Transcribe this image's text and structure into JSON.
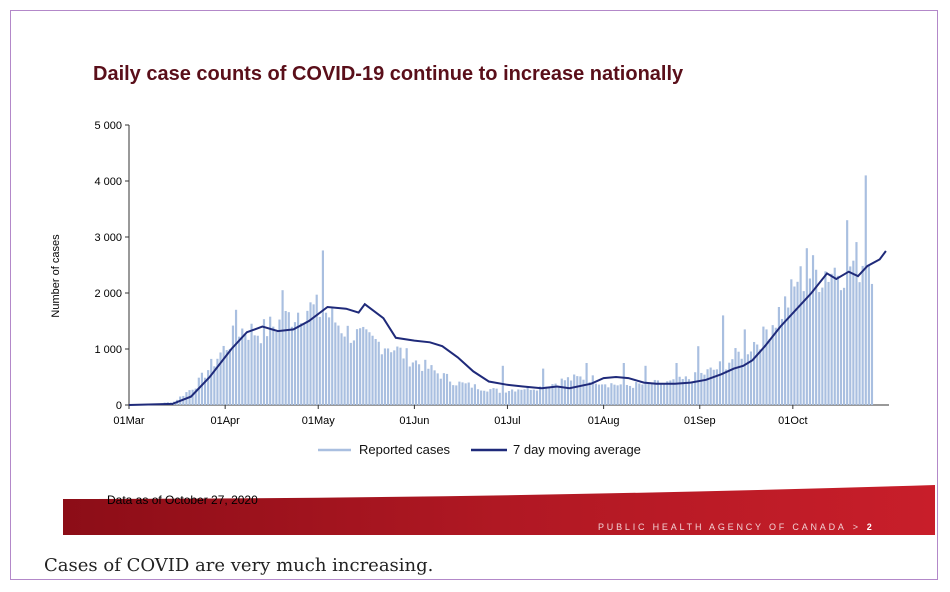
{
  "slide": {
    "title": "Daily case counts of COVID-19 continue to increase nationally",
    "data_as_of": "Data as of October 27, 2020",
    "agency": "PUBLIC HEALTH AGENCY OF CANADA",
    "separator": ">",
    "page_number": "2"
  },
  "caption": "Cases of COVID are very much increasing.",
  "colors": {
    "title": "#5a0f1a",
    "bars": "#a9bfe0",
    "average_line": "#1f2a7a",
    "banner": "#a3121d"
  },
  "chart_data": {
    "type": "bar",
    "ylabel": "Number of cases",
    "xlabel": "",
    "ylim": [
      0,
      5000
    ],
    "yticks": [
      0,
      1000,
      2000,
      3000,
      4000,
      5000
    ],
    "ytick_labels": [
      "0",
      "1 000",
      "2 000",
      "3 000",
      "4 000",
      "5 000"
    ],
    "xticks": [
      "01Mar",
      "01Apr",
      "01May",
      "01Jun",
      "01Jul",
      "01Aug",
      "01Sep",
      "01Oct"
    ],
    "x_start": "2020-03-01",
    "legend_position": "bottom",
    "series": [
      {
        "name": "Reported cases",
        "kind": "bar",
        "weekly_points": [
          [
            "2020-03-01",
            0
          ],
          [
            "2020-03-08",
            10
          ],
          [
            "2020-03-15",
            60
          ],
          [
            "2020-03-22",
            350
          ],
          [
            "2020-03-29",
            850
          ],
          [
            "2020-04-05",
            1350
          ],
          [
            "2020-04-12",
            1300
          ],
          [
            "2020-04-19",
            1500
          ],
          [
            "2020-04-26",
            1750
          ],
          [
            "2020-05-03",
            1650
          ],
          [
            "2020-05-10",
            1300
          ],
          [
            "2020-05-17",
            1150
          ],
          [
            "2020-05-24",
            1050
          ],
          [
            "2020-05-31",
            800
          ],
          [
            "2020-06-07",
            600
          ],
          [
            "2020-06-14",
            400
          ],
          [
            "2020-06-21",
            320
          ],
          [
            "2020-06-28",
            250
          ],
          [
            "2020-07-05",
            300
          ],
          [
            "2020-07-12",
            320
          ],
          [
            "2020-07-19",
            450
          ],
          [
            "2020-07-26",
            500
          ],
          [
            "2020-08-02",
            380
          ],
          [
            "2020-08-09",
            350
          ],
          [
            "2020-08-16",
            380
          ],
          [
            "2020-08-23",
            400
          ],
          [
            "2020-08-30",
            500
          ],
          [
            "2020-09-06",
            650
          ],
          [
            "2020-09-13",
            900
          ],
          [
            "2020-09-20",
            1200
          ],
          [
            "2020-09-27",
            1700
          ],
          [
            "2020-10-04",
            2300
          ],
          [
            "2020-10-11",
            2400
          ],
          [
            "2020-10-18",
            2500
          ],
          [
            "2020-10-25",
            2600
          ]
        ],
        "labeled_peaks": [
          [
            "2020-04-04",
            1700
          ],
          [
            "2020-04-19",
            2050
          ],
          [
            "2020-05-02",
            2760
          ],
          [
            "2020-06-29",
            700
          ],
          [
            "2020-07-12",
            650
          ],
          [
            "2020-07-26",
            750
          ],
          [
            "2020-08-07",
            750
          ],
          [
            "2020-08-14",
            700
          ],
          [
            "2020-08-24",
            750
          ],
          [
            "2020-08-31",
            1050
          ],
          [
            "2020-09-08",
            1600
          ],
          [
            "2020-09-15",
            1350
          ],
          [
            "2020-09-21",
            1400
          ],
          [
            "2020-09-26",
            1750
          ],
          [
            "2020-10-02",
            2200
          ],
          [
            "2020-10-05",
            2800
          ],
          [
            "2020-10-18",
            3300
          ],
          [
            "2020-10-24",
            4100
          ]
        ]
      },
      {
        "name": "7 day moving average",
        "kind": "line",
        "points": [
          [
            "2020-03-01",
            0
          ],
          [
            "2020-03-15",
            20
          ],
          [
            "2020-03-21",
            150
          ],
          [
            "2020-03-27",
            500
          ],
          [
            "2020-04-03",
            1000
          ],
          [
            "2020-04-08",
            1300
          ],
          [
            "2020-04-13",
            1400
          ],
          [
            "2020-04-18",
            1320
          ],
          [
            "2020-04-23",
            1350
          ],
          [
            "2020-04-28",
            1500
          ],
          [
            "2020-05-04",
            1750
          ],
          [
            "2020-05-10",
            1720
          ],
          [
            "2020-05-14",
            1650
          ],
          [
            "2020-05-16",
            1800
          ],
          [
            "2020-05-22",
            1550
          ],
          [
            "2020-05-26",
            1200
          ],
          [
            "2020-06-01",
            1150
          ],
          [
            "2020-06-06",
            1120
          ],
          [
            "2020-06-10",
            1050
          ],
          [
            "2020-06-15",
            850
          ],
          [
            "2020-06-20",
            600
          ],
          [
            "2020-06-25",
            420
          ],
          [
            "2020-07-01",
            360
          ],
          [
            "2020-07-06",
            330
          ],
          [
            "2020-07-12",
            300
          ],
          [
            "2020-07-17",
            330
          ],
          [
            "2020-07-21",
            300
          ],
          [
            "2020-07-28",
            380
          ],
          [
            "2020-08-01",
            480
          ],
          [
            "2020-08-05",
            500
          ],
          [
            "2020-08-09",
            480
          ],
          [
            "2020-08-14",
            400
          ],
          [
            "2020-08-18",
            380
          ],
          [
            "2020-08-24",
            380
          ],
          [
            "2020-08-29",
            400
          ],
          [
            "2020-09-03",
            450
          ],
          [
            "2020-09-08",
            550
          ],
          [
            "2020-09-12",
            650
          ],
          [
            "2020-09-15",
            700
          ],
          [
            "2020-09-18",
            800
          ],
          [
            "2020-09-22",
            1050
          ],
          [
            "2020-09-27",
            1400
          ],
          [
            "2020-10-02",
            1700
          ],
          [
            "2020-10-07",
            2000
          ],
          [
            "2020-10-12",
            2350
          ],
          [
            "2020-10-15",
            2250
          ],
          [
            "2020-10-19",
            2380
          ],
          [
            "2020-10-22",
            2300
          ],
          [
            "2020-10-25",
            2480
          ],
          [
            "2020-10-29",
            2600
          ],
          [
            "2020-10-31",
            2750
          ]
        ]
      }
    ]
  }
}
